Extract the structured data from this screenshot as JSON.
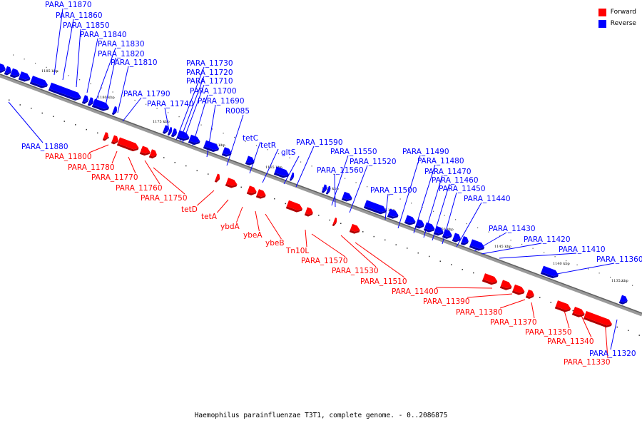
{
  "caption": "Haemophilus parainfluenzae T3T1, complete genome. - 0..2086875",
  "legend": [
    {
      "label": "Forward",
      "color": "#ff0000"
    },
    {
      "label": "Reverse",
      "color": "#0000ff"
    }
  ],
  "colors": {
    "forward": "#ff0000",
    "reverse": "#0000ff",
    "axis": "#808080"
  },
  "ticks": [
    "1185 kbp",
    "1180 kbp",
    "1175 kbp",
    "1170 kbp",
    "1165 kbp",
    "1160 kbp",
    "1155 kbp",
    "1150 kbp",
    "1145 kbp",
    "1140 kbp",
    "1135 kbp"
  ],
  "reverse_labels": [
    "PARA_11870",
    "PARA_11860",
    "PARA_11850",
    "PARA_11840",
    "PARA_11830",
    "PARA_11820",
    "PARA_11810",
    "PARA_11790",
    "PARA_11740",
    "PARA_11730",
    "PARA_11720",
    "PARA_11710",
    "PARA_11700",
    "PARA_11690",
    "R0085",
    "tetC",
    "tetR",
    "gltS",
    "PARA_11590",
    "PARA_11550",
    "PARA_11520",
    "PARA_11560",
    "PARA_11500",
    "PARA_11490",
    "PARA_11480",
    "PARA_11470",
    "PARA_11460",
    "PARA_11450",
    "PARA_11440",
    "PARA_11430",
    "PARA_11420",
    "PARA_11410",
    "PARA_11360",
    "PARA_11880",
    "PARA_11320"
  ],
  "forward_labels": [
    "PARA_11800",
    "PARA_11780",
    "PARA_11770",
    "PARA_11760",
    "PARA_11750",
    "tetD",
    "tetA",
    "ybdA",
    "ybeA",
    "ybeB",
    "Tn10L",
    "PARA_11570",
    "PARA_11530",
    "PARA_11510",
    "PARA_11400",
    "PARA_11390",
    "PARA_11380",
    "PARA_11370",
    "PARA_11350",
    "PARA_11340",
    "PARA_11330"
  ]
}
